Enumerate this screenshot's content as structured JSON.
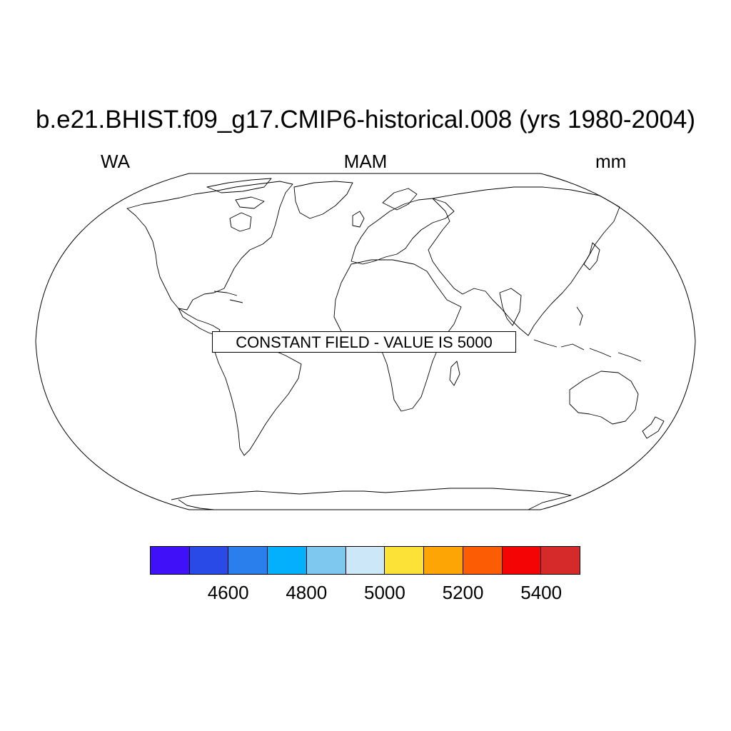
{
  "header": {
    "title": "b.e21.BHIST.f09_g17.CMIP6-historical.008 (yrs 1980-2004)",
    "left": "WA",
    "center": "MAM",
    "right": "mm"
  },
  "map": {
    "projection": "Robinson",
    "annotation": "CONSTANT FIELD - VALUE IS 5000"
  },
  "colorbar": {
    "colors": [
      "#4010f8",
      "#2a4ae8",
      "#2a7fec",
      "#04b0fc",
      "#7ec8f0",
      "#cce8f8",
      "#fce236",
      "#fca504",
      "#fc5c04",
      "#f40404",
      "#d42a2a"
    ],
    "labels": [
      "4600",
      "4800",
      "5000",
      "5200",
      "5400"
    ]
  }
}
